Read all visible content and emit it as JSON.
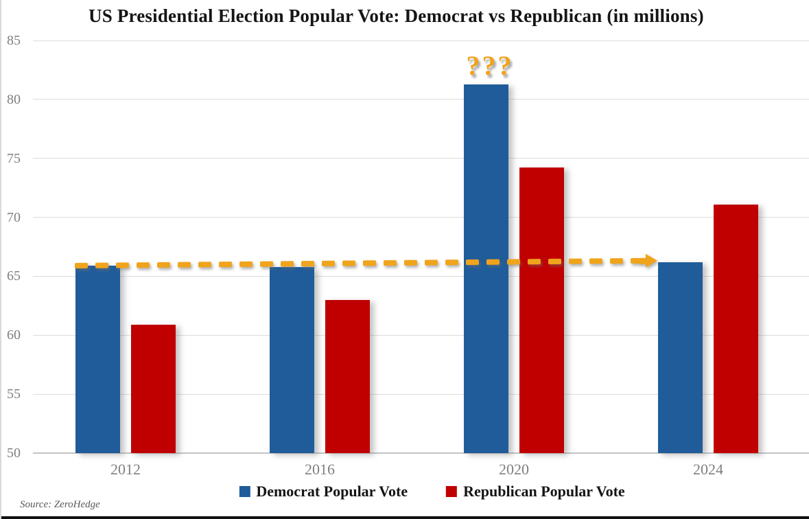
{
  "chart_data": {
    "type": "bar",
    "title": "US Presidential Election Popular Vote: Democrat vs Republican (in millions)",
    "categories": [
      "2012",
      "2016",
      "2020",
      "2024"
    ],
    "series": [
      {
        "name": "Democrat Popular Vote",
        "color": "#205C99",
        "values": [
          65.9,
          65.8,
          81.3,
          66.2
        ]
      },
      {
        "name": "Republican Popular Vote",
        "color": "#C00000",
        "values": [
          60.9,
          63.0,
          74.2,
          71.1
        ]
      }
    ],
    "ylim": [
      50,
      85
    ],
    "yticks": [
      85,
      80,
      75,
      70,
      65,
      60,
      55,
      50
    ],
    "grid": "horizontal",
    "legend_position": "bottom",
    "annotations": [
      {
        "type": "text",
        "text": "???",
        "color": "#F0A41C",
        "position": "above 2020 Democrat bar"
      },
      {
        "type": "dashed-arrow",
        "color": "#F0A41C",
        "from": "2012 Democrat bar top (~65.9)",
        "to": "2024 Democrat bar top (~66.2)"
      }
    ],
    "source": "Source: ZeroHedge",
    "axis_colors": {
      "gridline": "#DCDCDC",
      "baseline": "#C3C3C3",
      "tick_label": "#7F7F7F",
      "title_text": "#151515"
    }
  }
}
